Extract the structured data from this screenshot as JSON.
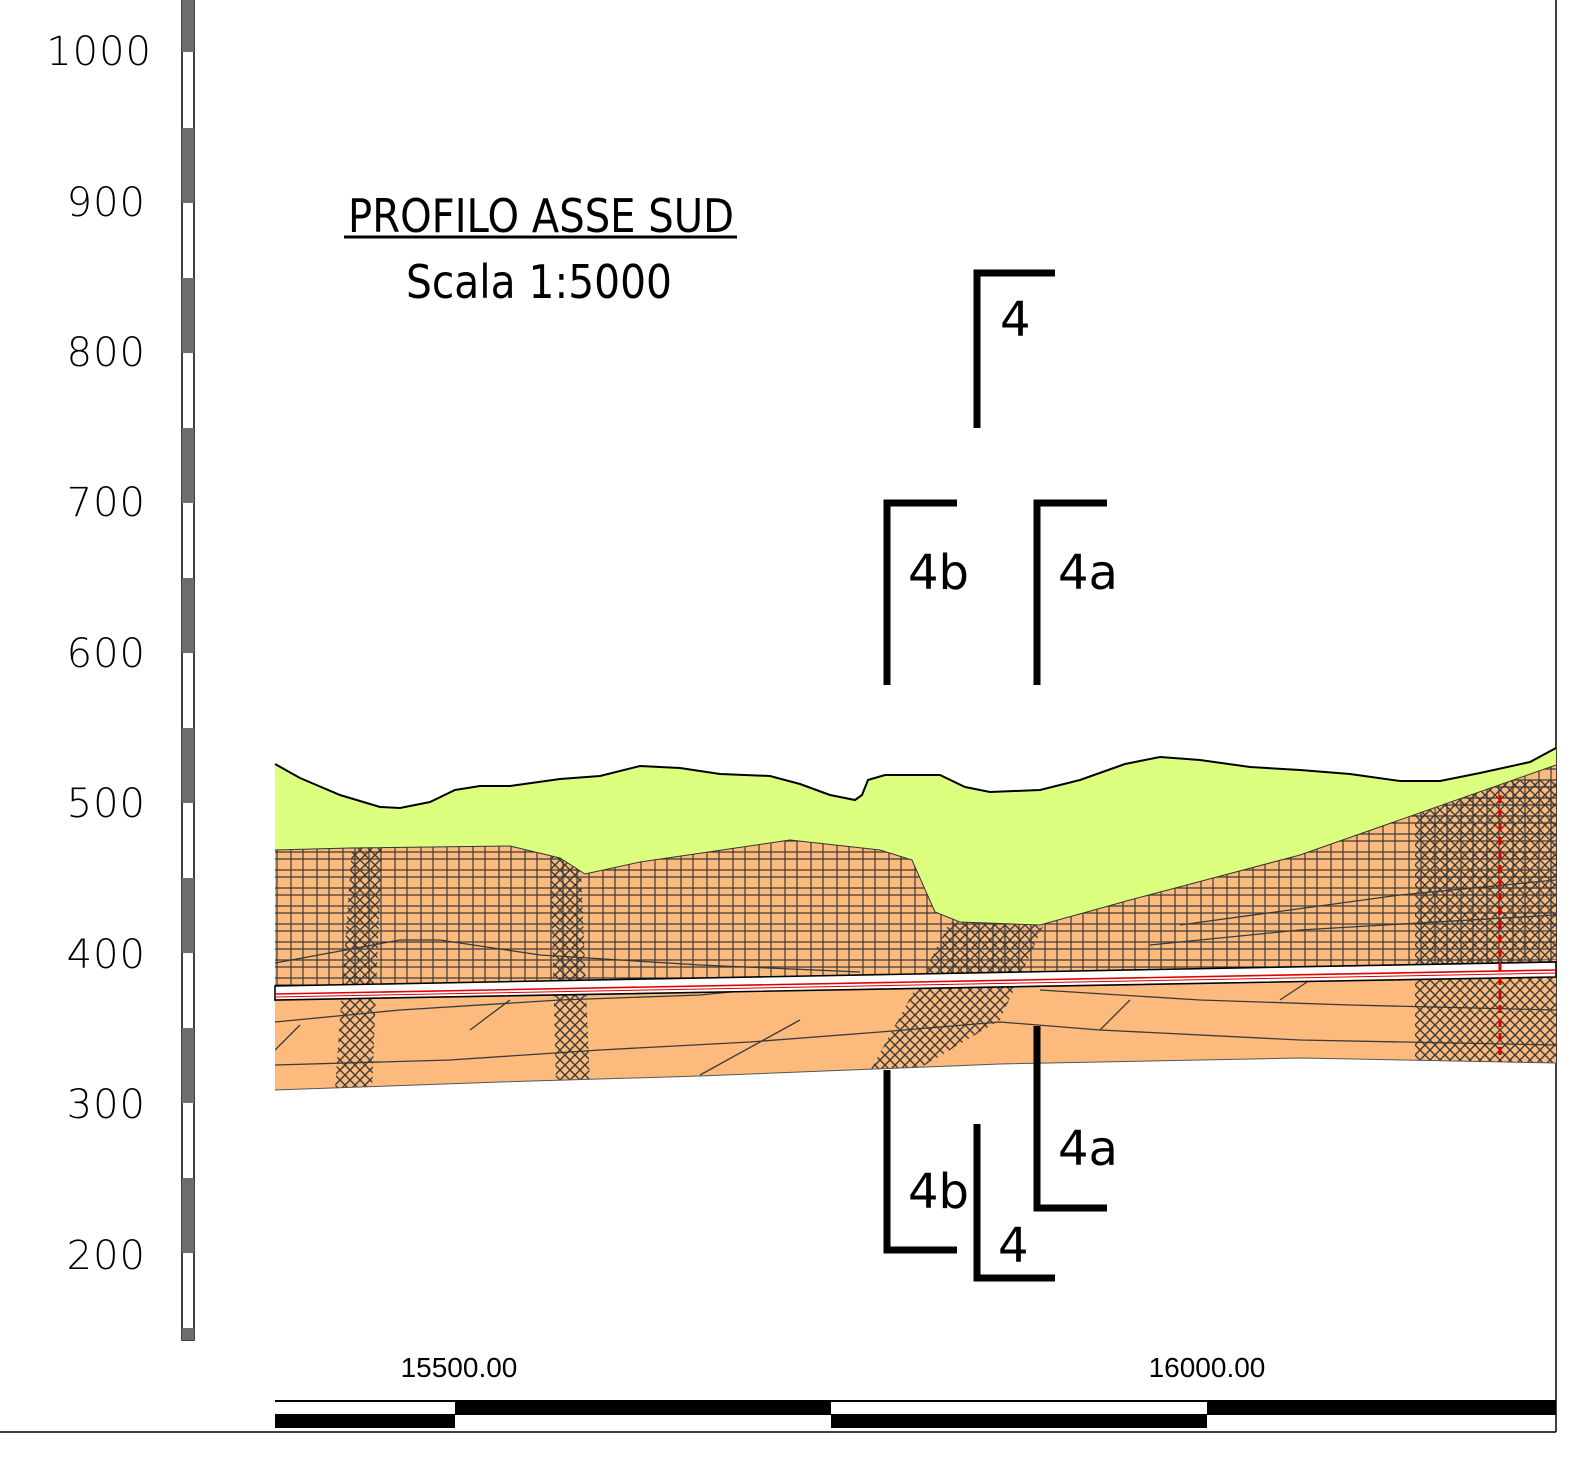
{
  "title": "PROFILO ASSE SUD",
  "subtitle": "Scala 1:5000",
  "elevation_ticks": [
    "1000",
    "900",
    "800",
    "700",
    "600",
    "500",
    "400",
    "300",
    "200"
  ],
  "chainage_ticks": [
    "15500.00",
    "16000.00"
  ],
  "section_markers": {
    "s4_top": "4",
    "s4b_top": "4b",
    "s4a_top": "4a",
    "s4a_bottom": "4a",
    "s4b_bottom": "4b",
    "s4_bottom": "4"
  },
  "colors": {
    "cover_layer": "#DDFF7F",
    "bedrock_layer": "#FCBB7D",
    "hatch": "#3a3a3a",
    "tunnel_axis": "#E00000",
    "scale_bar": "#000000"
  }
}
